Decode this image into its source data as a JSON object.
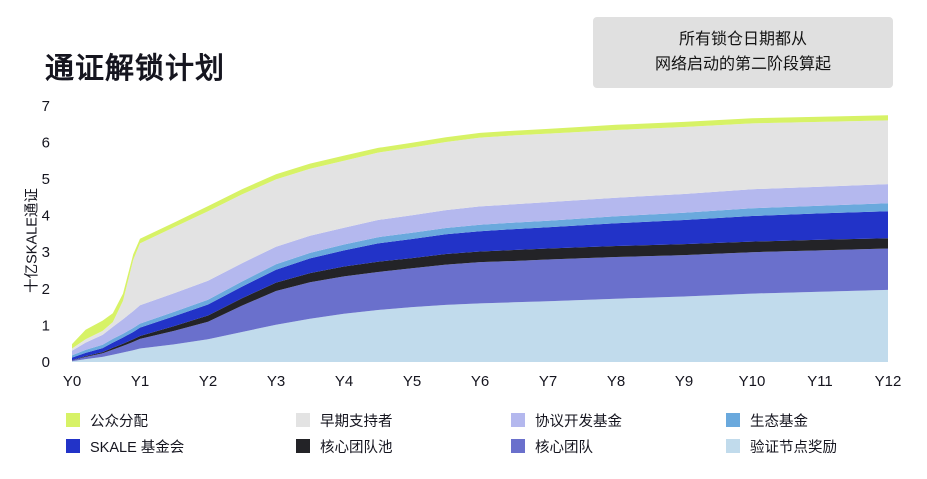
{
  "header": {
    "title": "通证解锁计划"
  },
  "note": {
    "line1": "所有锁仓日期都从",
    "line2": "网络启动的第二阶段算起",
    "bg_color": "#e0e0e0"
  },
  "chart_data": {
    "type": "area",
    "stacked": true,
    "title": "通证解锁计划",
    "xlabel": "",
    "ylabel": "十亿SKALE通证",
    "ylim": [
      0,
      7
    ],
    "yticks": [
      0,
      1,
      2,
      3,
      4,
      5,
      6,
      7
    ],
    "xtick_labels": [
      "Y0",
      "Y1",
      "Y2",
      "Y3",
      "Y4",
      "Y5",
      "Y6",
      "Y7",
      "Y8",
      "Y9",
      "Y10",
      "Y11",
      "Y12"
    ],
    "grid": false,
    "legend_position": "bottom",
    "x_years": [
      0,
      0.2,
      0.45,
      0.6,
      0.75,
      0.9,
      1,
      1.5,
      2,
      2.5,
      3,
      3.5,
      4,
      4.5,
      5,
      5.5,
      6,
      6.5,
      7,
      8,
      9,
      10,
      11,
      12
    ],
    "series": [
      {
        "id": "validator-rewards",
        "label": "验证节点奖励",
        "color": "#c1dbec",
        "values": [
          0.02,
          0.08,
          0.14,
          0.2,
          0.26,
          0.32,
          0.37,
          0.48,
          0.62,
          0.82,
          1.02,
          1.18,
          1.32,
          1.42,
          1.5,
          1.56,
          1.6,
          1.63,
          1.66,
          1.73,
          1.79,
          1.87,
          1.92,
          1.97
        ]
      },
      {
        "id": "core-team",
        "label": "核心团队",
        "color": "#6a70cc",
        "values": [
          0.02,
          0.06,
          0.1,
          0.14,
          0.18,
          0.23,
          0.26,
          0.37,
          0.48,
          0.72,
          0.92,
          1.0,
          1.02,
          1.04,
          1.06,
          1.1,
          1.13,
          1.13,
          1.14,
          1.14,
          1.13,
          1.13,
          1.13,
          1.13
        ]
      },
      {
        "id": "core-team-pool",
        "label": "核心团队池",
        "color": "#232327",
        "values": [
          0.01,
          0.02,
          0.03,
          0.05,
          0.06,
          0.07,
          0.08,
          0.13,
          0.17,
          0.2,
          0.23,
          0.25,
          0.27,
          0.28,
          0.28,
          0.29,
          0.29,
          0.3,
          0.3,
          0.3,
          0.3,
          0.29,
          0.29,
          0.28
        ]
      },
      {
        "id": "skale-foundation",
        "label": "SKALE 基金会",
        "color": "#2233c8",
        "values": [
          0.07,
          0.09,
          0.11,
          0.14,
          0.17,
          0.2,
          0.23,
          0.27,
          0.3,
          0.32,
          0.35,
          0.4,
          0.44,
          0.5,
          0.52,
          0.54,
          0.55,
          0.57,
          0.58,
          0.62,
          0.66,
          0.7,
          0.72,
          0.74
        ]
      },
      {
        "id": "eco-fund",
        "label": "生态基金",
        "color": "#6aa9dd",
        "values": [
          0.06,
          0.08,
          0.09,
          0.1,
          0.1,
          0.11,
          0.11,
          0.12,
          0.13,
          0.14,
          0.15,
          0.15,
          0.16,
          0.17,
          0.17,
          0.17,
          0.18,
          0.18,
          0.18,
          0.19,
          0.2,
          0.21,
          0.21,
          0.22
        ]
      },
      {
        "id": "protocol-dev-fund",
        "label": "协议开发基金",
        "color": "#b4b8ee",
        "values": [
          0.13,
          0.2,
          0.27,
          0.33,
          0.4,
          0.46,
          0.5,
          0.51,
          0.52,
          0.5,
          0.48,
          0.47,
          0.46,
          0.47,
          0.48,
          0.49,
          0.5,
          0.5,
          0.51,
          0.51,
          0.51,
          0.52,
          0.52,
          0.52
        ]
      },
      {
        "id": "early-supporters",
        "label": "早期支持者",
        "color": "#e3e3e3",
        "values": [
          0.06,
          0.09,
          0.11,
          0.13,
          0.5,
          1.4,
          1.69,
          1.8,
          1.9,
          1.88,
          1.84,
          1.83,
          1.83,
          1.84,
          1.85,
          1.86,
          1.88,
          1.88,
          1.87,
          1.85,
          1.83,
          1.8,
          1.77,
          1.74
        ]
      },
      {
        "id": "public-allocation",
        "label": "公众分配",
        "color": "#d7f266",
        "values": [
          0.12,
          0.26,
          0.28,
          0.24,
          0.2,
          0.15,
          0.13,
          0.13,
          0.14,
          0.14,
          0.14,
          0.14,
          0.14,
          0.13,
          0.13,
          0.13,
          0.13,
          0.13,
          0.13,
          0.14,
          0.14,
          0.14,
          0.14,
          0.14
        ]
      }
    ],
    "legend_display_order": [
      "public-allocation",
      "early-supporters",
      "protocol-dev-fund",
      "eco-fund",
      "skale-foundation",
      "core-team-pool",
      "core-team",
      "validator-rewards"
    ]
  }
}
